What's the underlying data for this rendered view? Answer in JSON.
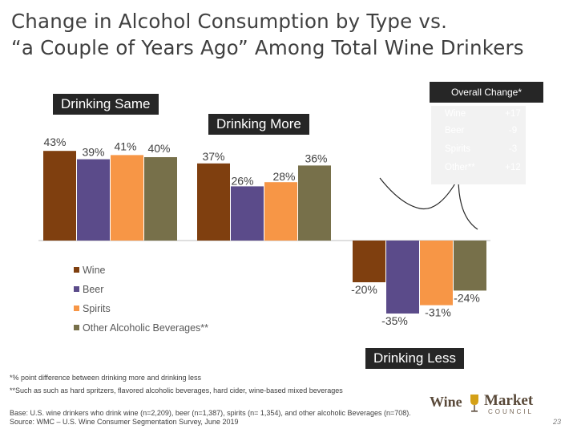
{
  "title_line1": "Change in Alcohol Consumption by Type vs.",
  "title_line2": "“a Couple of Years Ago” Among Total Wine Drinkers",
  "chart_data": {
    "type": "bar",
    "categories": [
      "Drinking Same",
      "Drinking More",
      "Drinking Less"
    ],
    "series": [
      {
        "name": "Wine",
        "color": "#7f3f0f",
        "values": [
          43,
          37,
          -20
        ],
        "labels": [
          "43%",
          "37%",
          "-20%"
        ]
      },
      {
        "name": "Beer",
        "color": "#5b4b8a",
        "values": [
          39,
          26,
          -35
        ],
        "labels": [
          "39%",
          "26%",
          "-35%"
        ]
      },
      {
        "name": "Spirits",
        "color": "#f79646",
        "values": [
          41,
          28,
          -31
        ],
        "labels": [
          "41%",
          "28%",
          "-31%"
        ]
      },
      {
        "name": "Other Alcoholic Beverages**",
        "color": "#77704a",
        "values": [
          40,
          36,
          -24
        ],
        "labels": [
          "40%",
          "36%",
          "-24%"
        ]
      }
    ],
    "ylim": [
      -40,
      50
    ]
  },
  "legend": [
    "Wine",
    "Beer",
    "Spirits",
    "Other Alcoholic Beverages**"
  ],
  "overall_change": {
    "header": "Overall Change*",
    "rows": [
      {
        "name": "Wine",
        "value": "+17"
      },
      {
        "name": "Beer",
        "value": "-9"
      },
      {
        "name": "Spirits",
        "value": "-3"
      },
      {
        "name": "Other**",
        "value": "+12"
      }
    ]
  },
  "footnote1": "*% point difference between drinking more and drinking less",
  "footnote2": "**Such as such as hard spritzers, flavored alcoholic beverages, hard cider, wine-based mixed beverages",
  "footnote3": "Base: U.S. wine drinkers who drink wine (n=2,209), beer (n=1,387), spirits (n= 1,354), and other alcoholic Beverages (n=708).  Source: WMC – U.S. Wine Consumer Segmentation Survey, June 2019",
  "logo": {
    "word1": "Wine",
    "word2": "Market",
    "word3": "COUNCIL"
  },
  "page_number": "23",
  "colors": {
    "label_bg": "#262626",
    "panel_bg": "#f2f2f2"
  }
}
